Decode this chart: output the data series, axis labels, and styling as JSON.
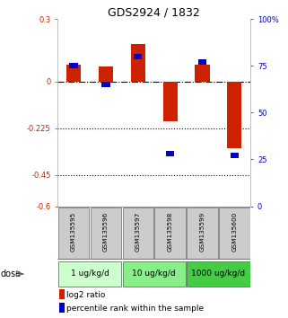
{
  "title": "GDS2924 / 1832",
  "samples": [
    "GSM135595",
    "GSM135596",
    "GSM135597",
    "GSM135598",
    "GSM135599",
    "GSM135600"
  ],
  "log2_ratio": [
    0.08,
    0.07,
    0.18,
    -0.19,
    0.08,
    -0.32
  ],
  "percentile_rank": [
    75,
    65,
    80,
    28,
    77,
    27
  ],
  "dose_groups": [
    {
      "label": "1 ug/kg/d",
      "samples": [
        0,
        1
      ]
    },
    {
      "label": "10 ug/kg/d",
      "samples": [
        2,
        3
      ]
    },
    {
      "label": "1000 ug/kg/d",
      "samples": [
        4,
        5
      ]
    }
  ],
  "ylim_left": [
    -0.6,
    0.3
  ],
  "yticks_left": [
    0.3,
    0.0,
    -0.225,
    -0.45,
    -0.6
  ],
  "ytick_labels_left": [
    "0.3",
    "0",
    "-0.225",
    "-0.45",
    "-0.6"
  ],
  "yticks_right_pct": [
    100,
    75,
    50,
    25,
    0
  ],
  "ytick_labels_right": [
    "100%",
    "75",
    "50",
    "25",
    "0"
  ],
  "dotted_lines": [
    -0.225,
    -0.45
  ],
  "bar_color_red": "#cc2200",
  "bar_color_blue": "#0000cc",
  "bar_width": 0.45,
  "left_axis_color": "#cc2200",
  "right_axis_color": "#0000bb",
  "background_color": "#ffffff",
  "sample_box_color": "#cccccc",
  "dose_colors": [
    "#ccffcc",
    "#88ee88",
    "#44cc44"
  ],
  "xlim": [
    -0.5,
    5.5
  ]
}
